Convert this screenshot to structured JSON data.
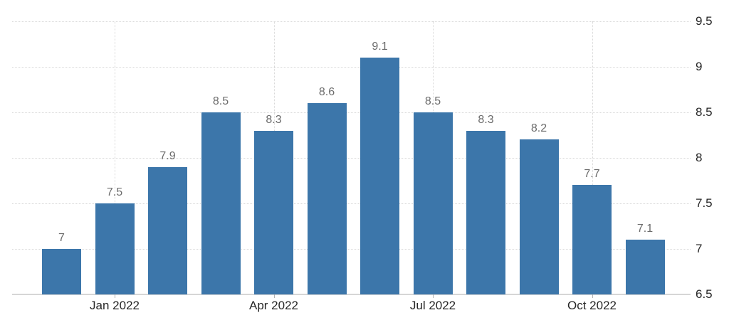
{
  "chart_data": {
    "type": "bar",
    "title": "",
    "xlabel": "",
    "ylabel": "",
    "values": [
      7,
      7.5,
      7.9,
      8.5,
      8.3,
      8.6,
      9.1,
      8.5,
      8.3,
      8.2,
      7.7,
      7.1
    ],
    "bar_labels": [
      "7",
      "7.5",
      "7.9",
      "8.5",
      "8.3",
      "8.6",
      "9.1",
      "8.5",
      "8.3",
      "8.2",
      "7.7",
      "7.1"
    ],
    "x_ticks": [
      {
        "label": "Jan 2022",
        "bar_index": 1
      },
      {
        "label": "Apr 2022",
        "bar_index": 4
      },
      {
        "label": "Jul 2022",
        "bar_index": 7
      },
      {
        "label": "Oct 2022",
        "bar_index": 10
      }
    ],
    "y_ticks": [
      "9.5",
      "9",
      "8.5",
      "8",
      "7.5",
      "7",
      "6.5"
    ],
    "ylim": [
      6.5,
      9.5
    ],
    "grid": true,
    "legend": "none",
    "y_axis_side": "right",
    "colors": {
      "bar": "#3c76aa",
      "value_label": "#6b6b6b",
      "axis_label": "#262626",
      "gridline": "#d8d8d8",
      "baseline": "#d6d6d6",
      "tick": "#b3b3b3",
      "background": "#ffffff"
    }
  }
}
